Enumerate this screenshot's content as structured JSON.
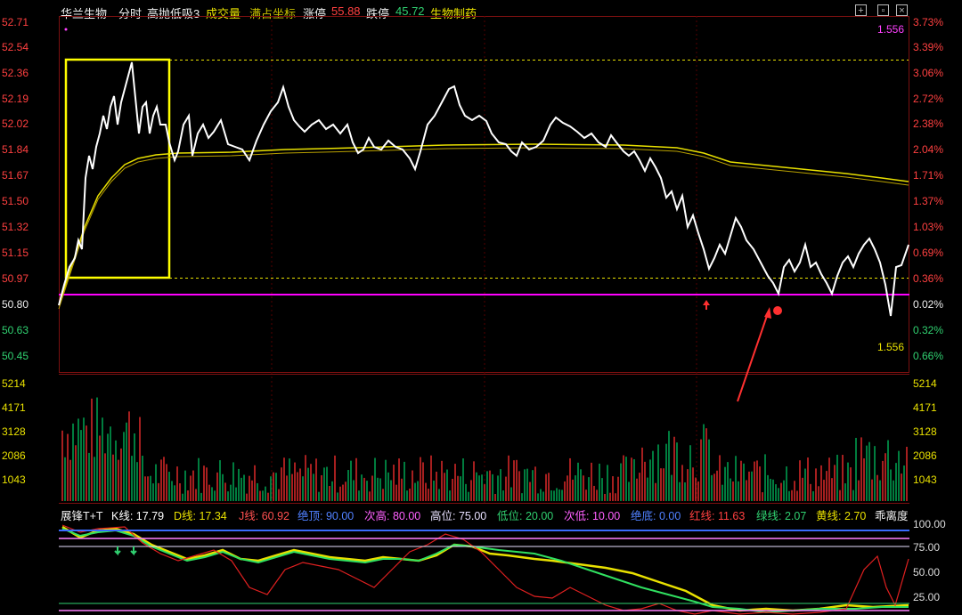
{
  "header": {
    "stock_name": "华兰生物",
    "tab_timeshare": "分时",
    "indicator_name": "高抛低吸3",
    "volume_label": "成交量",
    "full_coord_label": "满占坐标",
    "limit_up_label": "涨停",
    "limit_up_value": "55.88",
    "limit_down_label": "跌停",
    "limit_down_value": "45.72",
    "sector": "生物制药"
  },
  "price_axis_left": [
    "52.71",
    "52.54",
    "52.36",
    "52.19",
    "52.02",
    "51.84",
    "51.67",
    "51.50",
    "51.32",
    "51.15",
    "50.97",
    "50.80",
    "50.63",
    "50.45"
  ],
  "price_axis_right": [
    "3.73%",
    "3.39%",
    "3.06%",
    "2.72%",
    "2.38%",
    "2.04%",
    "1.71%",
    "1.37%",
    "1.03%",
    "0.69%",
    "0.36%",
    "0.02%",
    "0.32%",
    "0.66%"
  ],
  "volume_axis": [
    "5214",
    "4171",
    "3128",
    "2086",
    "1043"
  ],
  "indicator_axis": [
    "100.00",
    "75.00",
    "50.00",
    "25.00"
  ],
  "value_top_right": "1.556",
  "value_bottom_right": "1.556",
  "indicator_bar": {
    "name": "展锋T+T",
    "k": "K线: 17.79",
    "d": "D线: 17.34",
    "j": "J线: 60.92",
    "abs_top": "绝顶: 90.00",
    "sub_high": "次高: 80.00",
    "high": "高位: 75.00",
    "low": "低位: 20.00",
    "sub_low": "次低: 10.00",
    "abs_bottom": "绝底: 0.00",
    "red_line": "红线: 11.63",
    "green_line": "绿线: 2.07",
    "yellow_line": "黄线: 2.70",
    "bias": "乖离度"
  },
  "colors": {
    "price_line": "#ffffff",
    "avg_line": "#e8e000",
    "magenta_line": "#ff00ff",
    "up": "#ff3030",
    "down": "#00c060",
    "box": "#ffff00"
  }
}
